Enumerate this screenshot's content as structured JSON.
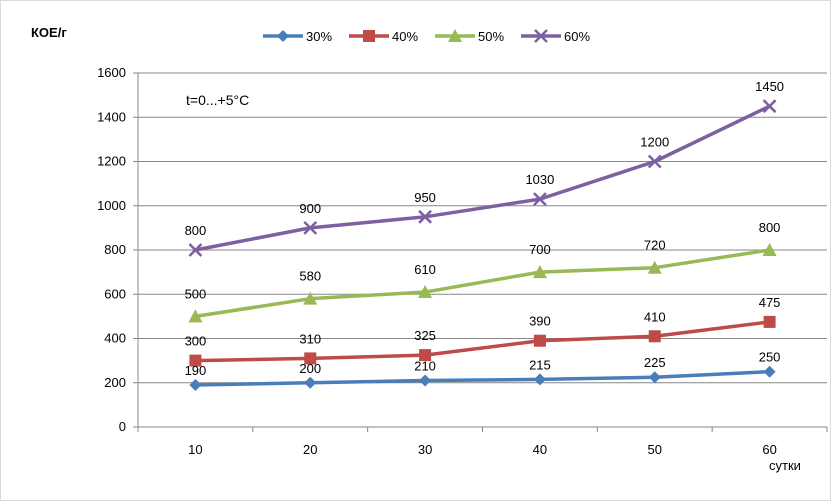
{
  "chart_data": {
    "type": "line",
    "ylabel": "КОЕ/г",
    "xlabel": "сутки",
    "annotation": "t=0...+5°C",
    "x": [
      10,
      20,
      30,
      40,
      50,
      60
    ],
    "ylim": [
      0,
      1600
    ],
    "yticks": [
      0,
      200,
      400,
      600,
      800,
      1000,
      1200,
      1400,
      1600
    ],
    "grid": true,
    "legend_position": "top",
    "series": [
      {
        "name": "30%",
        "values": [
          190,
          200,
          210,
          215,
          225,
          250
        ],
        "color": "#4a7ebb",
        "marker": "diamond"
      },
      {
        "name": "40%",
        "values": [
          300,
          310,
          325,
          390,
          410,
          475
        ],
        "color": "#be4b48",
        "marker": "square"
      },
      {
        "name": "50%",
        "values": [
          500,
          580,
          610,
          700,
          720,
          800
        ],
        "color": "#98b954",
        "marker": "triangle"
      },
      {
        "name": "60%",
        "values": [
          800,
          900,
          950,
          1030,
          1200,
          1450
        ],
        "color": "#7d60a0",
        "marker": "x"
      }
    ]
  }
}
